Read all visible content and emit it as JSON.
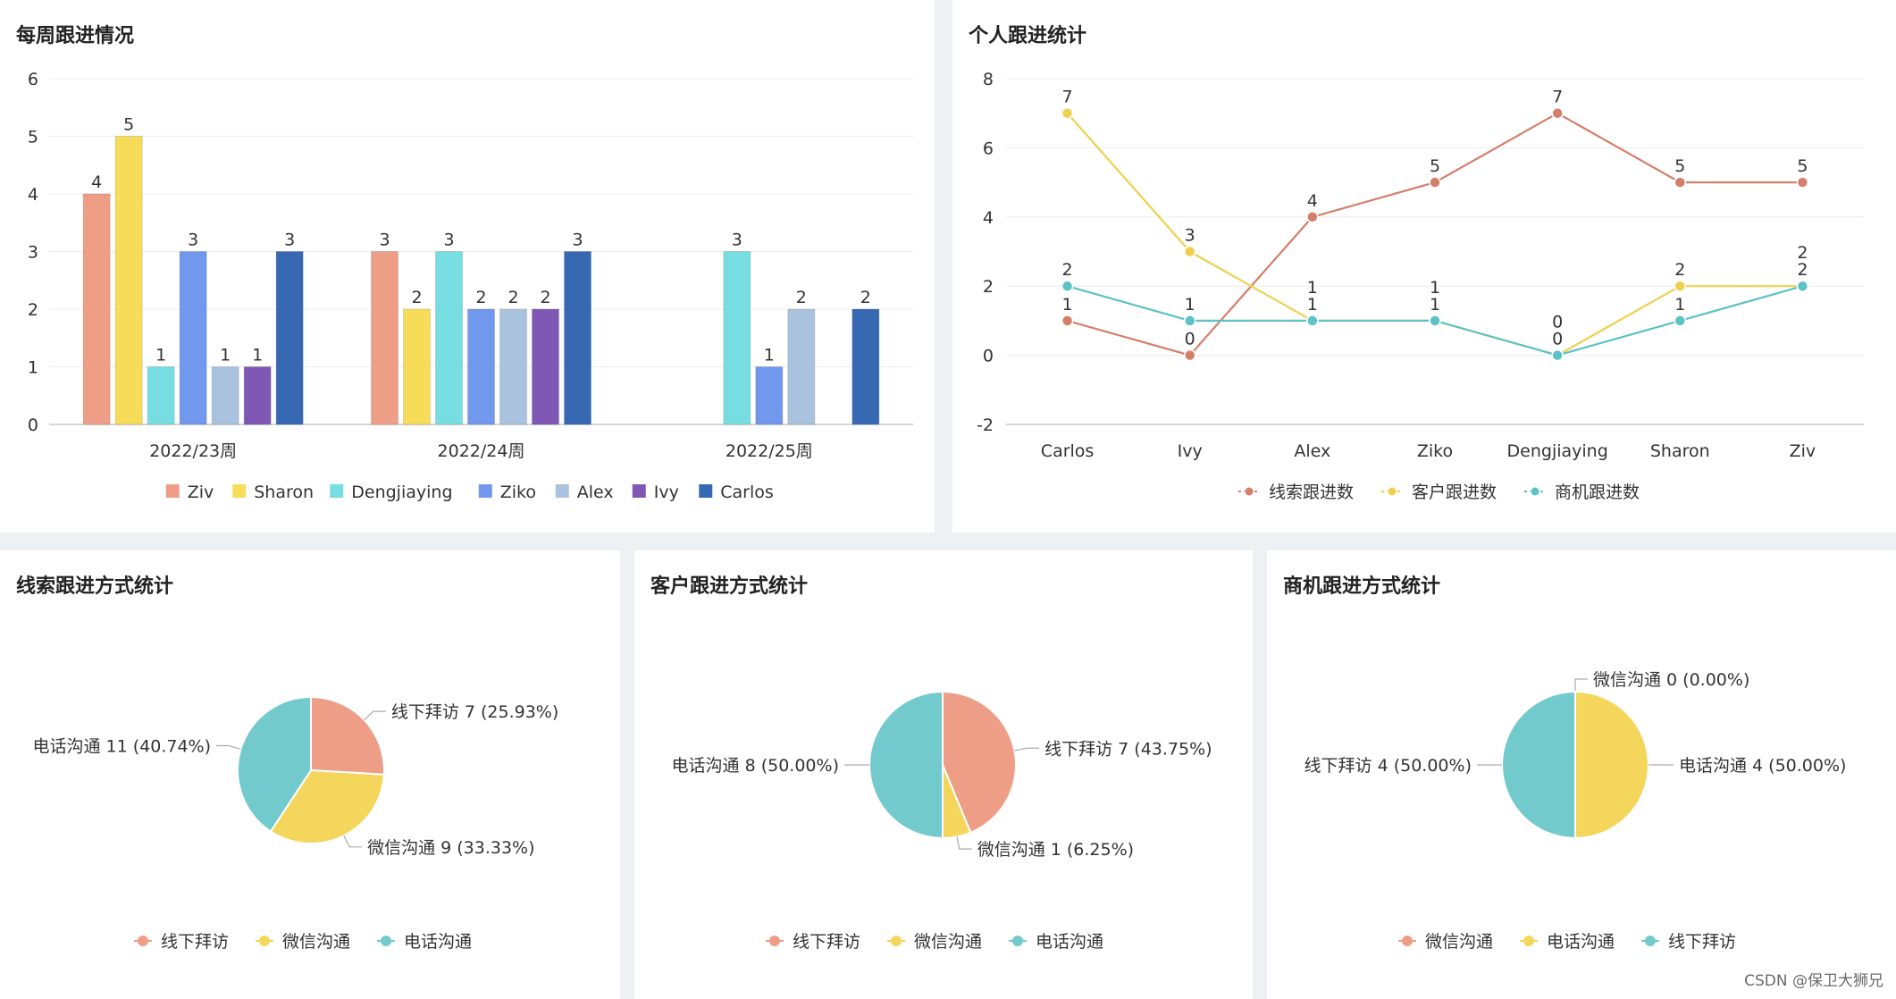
{
  "watermark": "CSDN @保卫大狮兄",
  "chart_data": [
    {
      "id": "weekly",
      "type": "bar",
      "title": "每周跟进情况",
      "categories": [
        "2022/23周",
        "2022/24周",
        "2022/25周"
      ],
      "ylim": [
        0,
        6
      ],
      "yticks": [
        "0",
        "1",
        "2",
        "3",
        "4",
        "5",
        "6"
      ],
      "legend_position": "bottom",
      "series": [
        {
          "name": "Ziv",
          "color": "#ee9e86",
          "values": [
            4,
            3,
            null
          ]
        },
        {
          "name": "Sharon",
          "color": "#f7dc5a",
          "values": [
            5,
            2,
            null
          ]
        },
        {
          "name": "Dengjiaying",
          "color": "#77dde0",
          "values": [
            1,
            3,
            3
          ]
        },
        {
          "name": "Ziko",
          "color": "#7198ec",
          "values": [
            3,
            2,
            1
          ]
        },
        {
          "name": "Alex",
          "color": "#a9c2de",
          "values": [
            1,
            2,
            2
          ]
        },
        {
          "name": "Ivy",
          "color": "#7f58b6",
          "values": [
            1,
            2,
            null
          ]
        },
        {
          "name": "Carlos",
          "color": "#3769b3",
          "values": [
            3,
            3,
            2
          ]
        }
      ]
    },
    {
      "id": "personal",
      "type": "line",
      "title": "个人跟进统计",
      "categories": [
        "Carlos",
        "Ivy",
        "Alex",
        "Ziko",
        "Dengjiaying",
        "Sharon",
        "Ziv"
      ],
      "ylim": [
        -2,
        8
      ],
      "yticks": [
        "-2",
        "0",
        "2",
        "4",
        "6",
        "8"
      ],
      "legend_position": "bottom",
      "series": [
        {
          "name": "线索跟进数",
          "color": "#d47f6a",
          "values": [
            1,
            0,
            4,
            5,
            7,
            5,
            5
          ]
        },
        {
          "name": "客户跟进数",
          "color": "#efd04e",
          "values": [
            7,
            3,
            1,
            1,
            0,
            2,
            2
          ]
        },
        {
          "name": "商机跟进数",
          "color": "#5cc2c5",
          "values": [
            2,
            1,
            1,
            1,
            0,
            1,
            2
          ]
        }
      ]
    },
    {
      "id": "clue",
      "type": "pie",
      "title": "线索跟进方式统计",
      "legend_position": "bottom",
      "slices": [
        {
          "name": "线下拜访",
          "value": 7,
          "label": "线下拜访 7 (25.93%)",
          "color": "#ee9e86"
        },
        {
          "name": "微信沟通",
          "value": 9,
          "label": "微信沟通 9 (33.33%)",
          "color": "#f5d65c"
        },
        {
          "name": "电话沟通",
          "value": 11,
          "label": "电话沟通 11 (40.74%)",
          "color": "#72cacd"
        }
      ]
    },
    {
      "id": "customer",
      "type": "pie",
      "title": "客户跟进方式统计",
      "legend_position": "bottom",
      "slices": [
        {
          "name": "线下拜访",
          "value": 7,
          "label": "线下拜访 7 (43.75%)",
          "color": "#ee9e86"
        },
        {
          "name": "微信沟通",
          "value": 1,
          "label": "微信沟通 1 (6.25%)",
          "color": "#f5d65c"
        },
        {
          "name": "电话沟通",
          "value": 8,
          "label": "电话沟通 8 (50.00%)",
          "color": "#72cacd"
        }
      ]
    },
    {
      "id": "opportunity",
      "type": "pie",
      "title": "商机跟进方式统计",
      "legend_position": "bottom",
      "slices": [
        {
          "name": "微信沟通",
          "value": 0,
          "label": "微信沟通 0 (0.00%)",
          "color": "#ee9e86"
        },
        {
          "name": "电话沟通",
          "value": 4,
          "label": "电话沟通 4 (50.00%)",
          "color": "#f5d65c"
        },
        {
          "name": "线下拜访",
          "value": 4,
          "label": "线下拜访 4 (50.00%)",
          "color": "#72cacd"
        }
      ]
    }
  ]
}
